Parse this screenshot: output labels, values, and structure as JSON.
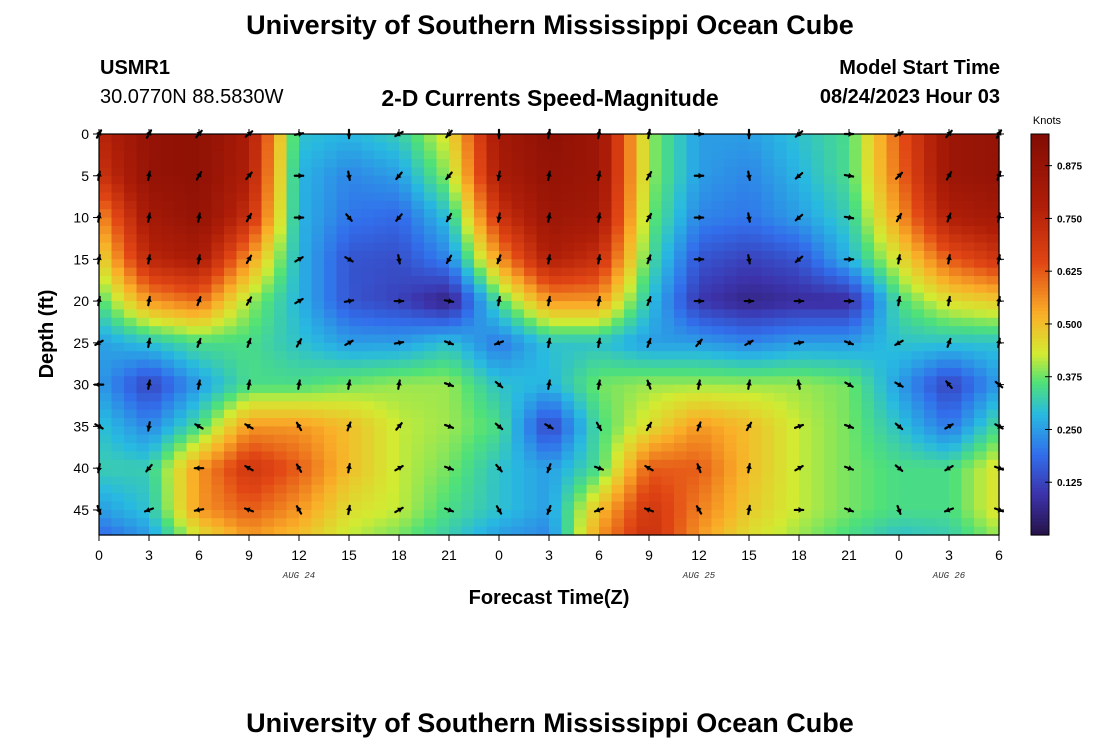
{
  "header": {
    "title": "University of Southern Mississippi Ocean Cube",
    "station_id": "USMR1",
    "station_coords": "30.0770N  88.5830W",
    "subtitle": "2-D Currents Speed-Magnitude",
    "model_start_label": "Model Start Time",
    "model_start_value": "08/24/2023 Hour 03"
  },
  "footer": {
    "title": "University of Southern Mississippi Ocean Cube"
  },
  "chart_data": {
    "type": "heatmap",
    "title": "2-D Currents Speed-Magnitude",
    "xlabel": "Forecast Time(Z)",
    "ylabel": "Depth (ft)",
    "x_ticks": [
      "0",
      "3",
      "6",
      "9",
      "12",
      "15",
      "18",
      "21",
      "0",
      "3",
      "6",
      "9",
      "12",
      "15",
      "18",
      "21",
      "0",
      "3",
      "6"
    ],
    "xlim": [
      0,
      54
    ],
    "ylim": [
      0,
      48
    ],
    "y_ticks": [
      "0",
      "5",
      "10",
      "15",
      "20",
      "25",
      "30",
      "35",
      "40",
      "45"
    ],
    "y_values": [
      0,
      5,
      10,
      15,
      20,
      25,
      30,
      35,
      40,
      45
    ],
    "date_labels": [
      {
        "x": 12,
        "label": "AUG 24"
      },
      {
        "x": 36,
        "label": "AUG 25"
      },
      {
        "x": 51,
        "label": "AUG 26"
      }
    ],
    "colorbar": {
      "units": "Knots",
      "range": [
        0,
        0.95
      ],
      "ticks": [
        "0.875",
        "0.750",
        "0.625",
        "0.500",
        "0.375",
        "0.250",
        "0.125"
      ],
      "tick_values": [
        0.875,
        0.75,
        0.625,
        0.5,
        0.375,
        0.25,
        0.125
      ]
    },
    "grid_x_hours": [
      0,
      3,
      6,
      9,
      12,
      15,
      18,
      21,
      24,
      27,
      30,
      33,
      36,
      39,
      42,
      45,
      48,
      51,
      54
    ],
    "grid_depths_ft": [
      0,
      5,
      10,
      15,
      20,
      25,
      30,
      35,
      40,
      45,
      48
    ],
    "speed_knots": [
      [
        0.75,
        0.88,
        0.9,
        0.8,
        0.3,
        0.28,
        0.32,
        0.45,
        0.82,
        0.9,
        0.85,
        0.4,
        0.25,
        0.25,
        0.3,
        0.35,
        0.62,
        0.85,
        0.88
      ],
      [
        0.7,
        0.88,
        0.9,
        0.78,
        0.28,
        0.22,
        0.25,
        0.4,
        0.8,
        0.88,
        0.85,
        0.4,
        0.25,
        0.22,
        0.28,
        0.35,
        0.6,
        0.85,
        0.88
      ],
      [
        0.55,
        0.82,
        0.88,
        0.72,
        0.28,
        0.2,
        0.18,
        0.3,
        0.7,
        0.85,
        0.82,
        0.38,
        0.22,
        0.2,
        0.25,
        0.32,
        0.55,
        0.78,
        0.82
      ],
      [
        0.45,
        0.75,
        0.8,
        0.55,
        0.28,
        0.15,
        0.14,
        0.22,
        0.55,
        0.78,
        0.72,
        0.35,
        0.15,
        0.12,
        0.15,
        0.28,
        0.45,
        0.62,
        0.7
      ],
      [
        0.35,
        0.55,
        0.6,
        0.4,
        0.28,
        0.15,
        0.12,
        0.05,
        0.35,
        0.55,
        0.55,
        0.3,
        0.1,
        0.06,
        0.08,
        0.08,
        0.35,
        0.45,
        0.48
      ],
      [
        0.25,
        0.3,
        0.35,
        0.35,
        0.3,
        0.25,
        0.25,
        0.3,
        0.2,
        0.3,
        0.3,
        0.25,
        0.25,
        0.22,
        0.25,
        0.25,
        0.3,
        0.3,
        0.3
      ],
      [
        0.25,
        0.12,
        0.25,
        0.35,
        0.35,
        0.38,
        0.4,
        0.4,
        0.3,
        0.28,
        0.38,
        0.4,
        0.4,
        0.4,
        0.4,
        0.38,
        0.25,
        0.12,
        0.25
      ],
      [
        0.3,
        0.22,
        0.35,
        0.55,
        0.55,
        0.5,
        0.42,
        0.4,
        0.35,
        0.12,
        0.35,
        0.45,
        0.55,
        0.5,
        0.42,
        0.38,
        0.3,
        0.2,
        0.35
      ],
      [
        0.32,
        0.32,
        0.55,
        0.7,
        0.62,
        0.5,
        0.42,
        0.38,
        0.3,
        0.25,
        0.35,
        0.62,
        0.62,
        0.5,
        0.42,
        0.38,
        0.35,
        0.35,
        0.45
      ],
      [
        0.25,
        0.3,
        0.55,
        0.62,
        0.55,
        0.45,
        0.42,
        0.35,
        0.3,
        0.25,
        0.5,
        0.7,
        0.58,
        0.48,
        0.42,
        0.38,
        0.35,
        0.35,
        0.45
      ],
      [
        0.18,
        0.25,
        0.45,
        0.55,
        0.5,
        0.42,
        0.38,
        0.32,
        0.25,
        0.22,
        0.55,
        0.72,
        0.55,
        0.45,
        0.4,
        0.35,
        0.3,
        0.32,
        0.4
      ]
    ],
    "vector_times": [
      0,
      3,
      6,
      9,
      12,
      15,
      18,
      21,
      24,
      27,
      30,
      33,
      36,
      39,
      42,
      45,
      48,
      51,
      54
    ],
    "vector_depths_ft": [
      0,
      5,
      10,
      15,
      20,
      25,
      30,
      35,
      40,
      45
    ],
    "direction_deg": [
      [
        30,
        30,
        40,
        50,
        80,
        180,
        240,
        220,
        180,
        10,
        10,
        10,
        90,
        180,
        230,
        90,
        60,
        40,
        30
      ],
      [
        10,
        10,
        30,
        40,
        90,
        170,
        220,
        220,
        190,
        10,
        10,
        30,
        90,
        170,
        230,
        100,
        45,
        30,
        20
      ],
      [
        10,
        10,
        10,
        30,
        90,
        140,
        220,
        210,
        190,
        10,
        10,
        30,
        90,
        170,
        230,
        100,
        30,
        20,
        10
      ],
      [
        10,
        10,
        10,
        30,
        60,
        120,
        170,
        210,
        200,
        10,
        10,
        20,
        90,
        170,
        230,
        90,
        10,
        10,
        10
      ],
      [
        10,
        10,
        20,
        30,
        60,
        80,
        90,
        100,
        10,
        10,
        10,
        20,
        90,
        90,
        90,
        90,
        10,
        10,
        10
      ],
      [
        240,
        10,
        20,
        20,
        30,
        60,
        80,
        110,
        250,
        10,
        10,
        20,
        40,
        60,
        80,
        110,
        240,
        20,
        10
      ],
      [
        270,
        10,
        10,
        10,
        10,
        10,
        10,
        110,
        130,
        10,
        10,
        340,
        10,
        10,
        350,
        120,
        120,
        320,
        130
      ],
      [
        120,
        190,
        300,
        300,
        330,
        20,
        40,
        110,
        130,
        120,
        150,
        30,
        20,
        30,
        70,
        110,
        130,
        60,
        120
      ],
      [
        190,
        220,
        270,
        300,
        330,
        10,
        60,
        110,
        140,
        200,
        110,
        300,
        340,
        10,
        60,
        110,
        130,
        240,
        110
      ],
      [
        160,
        250,
        260,
        290,
        330,
        10,
        60,
        110,
        150,
        200,
        250,
        290,
        330,
        10,
        90,
        110,
        160,
        250,
        110
      ]
    ]
  }
}
